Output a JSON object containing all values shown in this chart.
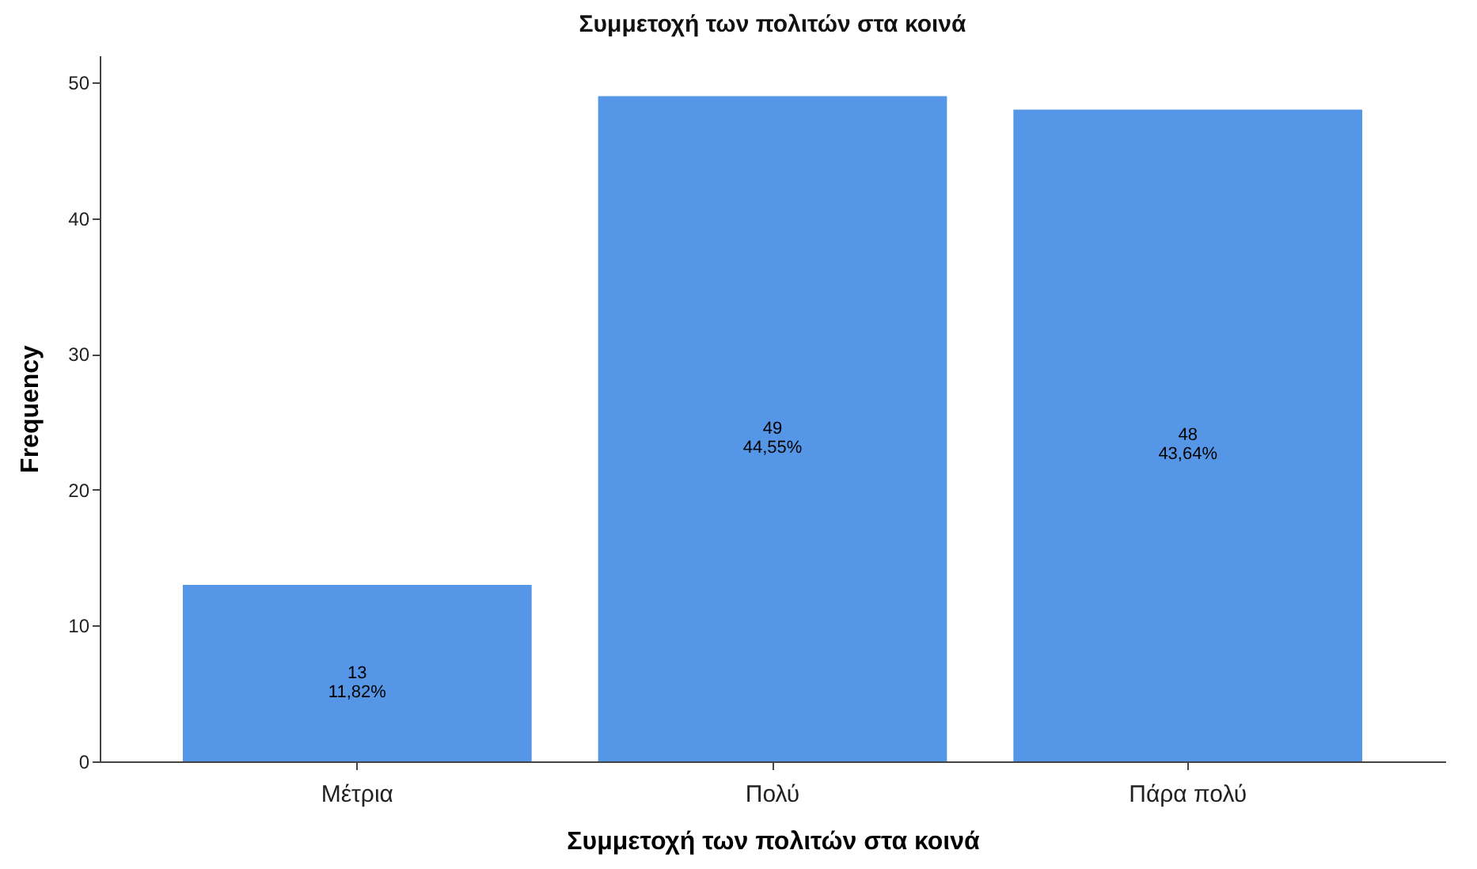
{
  "chart_data": {
    "type": "bar",
    "title": "Συμμετοχή των πολιτών στα κοινά",
    "xlabel": "Συμμετοχή των πολιτών στα κοινά",
    "ylabel": "Frequency",
    "categories": [
      "Μέτρια",
      "Πολύ",
      "Πάρα πολύ"
    ],
    "values": [
      13,
      49,
      48
    ],
    "value_labels": [
      "13\n11,82%",
      "49\n44,55%",
      "48\n43,64%"
    ],
    "color": "#5596e6",
    "ylim": [
      0,
      52
    ],
    "yticks": [
      0,
      10,
      20,
      30,
      40,
      50
    ],
    "grid": false
  }
}
